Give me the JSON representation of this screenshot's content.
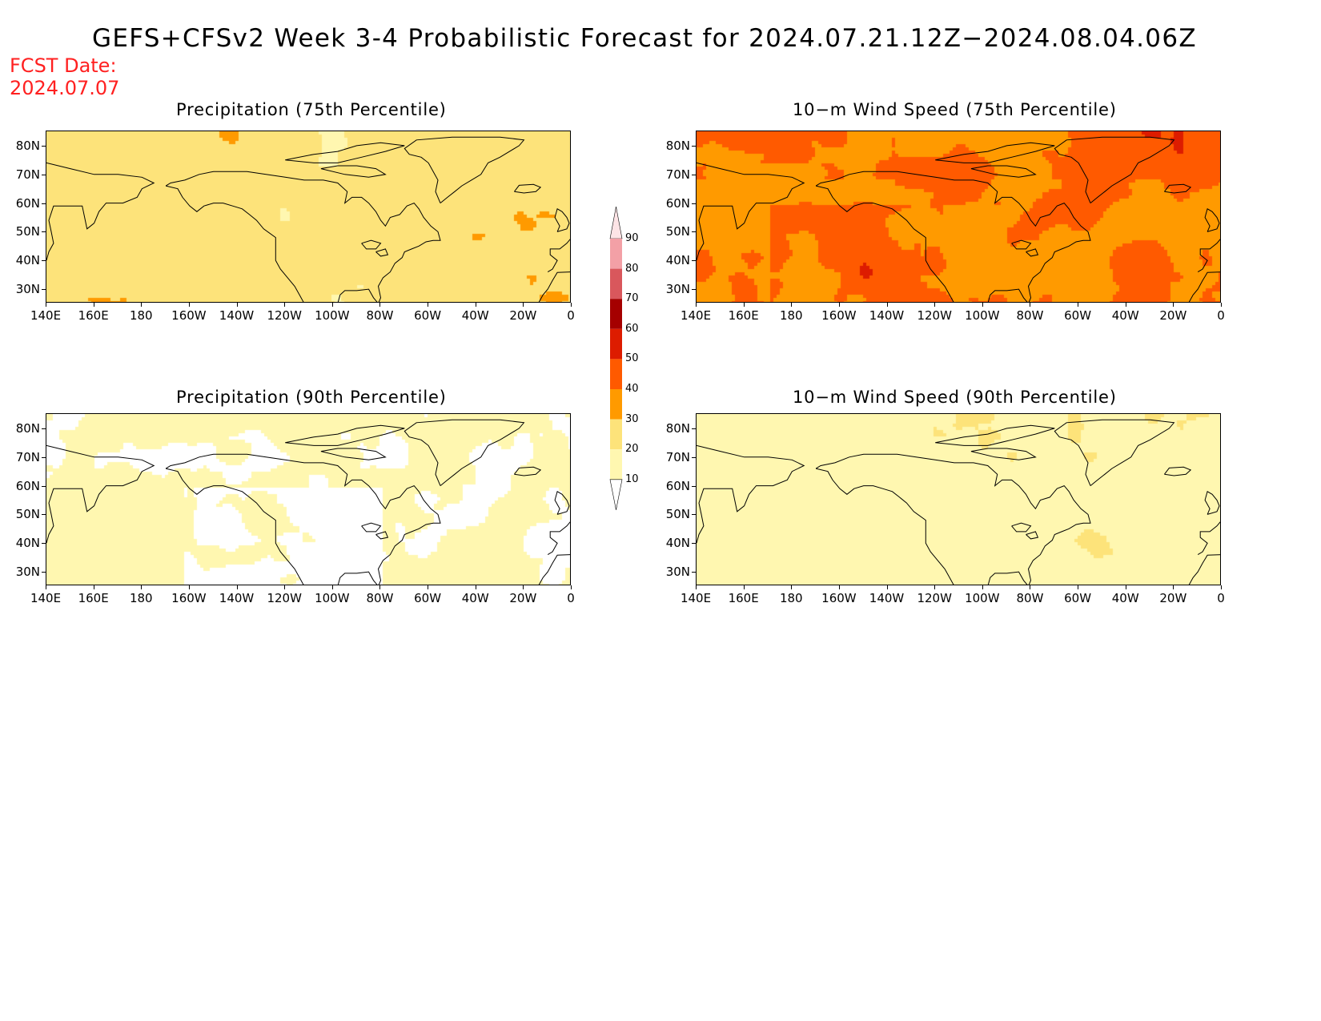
{
  "title": "GEFS+CFSv2 Week 3-4 Probabilistic Forecast for 2024.07.21.12Z−2024.08.04.06Z",
  "fcst_date_label": "FCST Date:",
  "fcst_date": "2024.07.07",
  "latitude_labels": [
    "80N",
    "70N",
    "60N",
    "50N",
    "40N",
    "30N"
  ],
  "longitude_labels": [
    "140E",
    "160E",
    "180",
    "160W",
    "140W",
    "120W",
    "100W",
    "80W",
    "60W",
    "40W",
    "20W",
    "0"
  ],
  "panels": [
    {
      "id": "precip-75",
      "title": "Precipitation (75th Percentile)",
      "level": "medium"
    },
    {
      "id": "wind-75",
      "title": "10−m Wind Speed (75th Percentile)",
      "level": "high"
    },
    {
      "id": "precip-90",
      "title": "Precipitation (90th Percentile)",
      "level": "low"
    },
    {
      "id": "wind-90",
      "title": "10−m Wind Speed (90th Percentile)",
      "level": "low-medium"
    }
  ],
  "colorbar": {
    "labels": [
      "90",
      "80",
      "70",
      "60",
      "50",
      "40",
      "30",
      "20",
      "10"
    ],
    "colors": [
      "#fde4e6",
      "#f3a0a6",
      "#d9575c",
      "#a50000",
      "#dd1c00",
      "#ff5a00",
      "#ff9a00",
      "#fde37a",
      "#fff7b0",
      "#ffffff"
    ]
  },
  "colors": {
    "title_date": "#ff2020",
    "white": "#ffffff",
    "pale_yellow": "#fff7b0",
    "yellow": "#fde37a",
    "orange": "#ff9a00",
    "dark_orange": "#ff5a00",
    "red": "#dd1c00"
  }
}
